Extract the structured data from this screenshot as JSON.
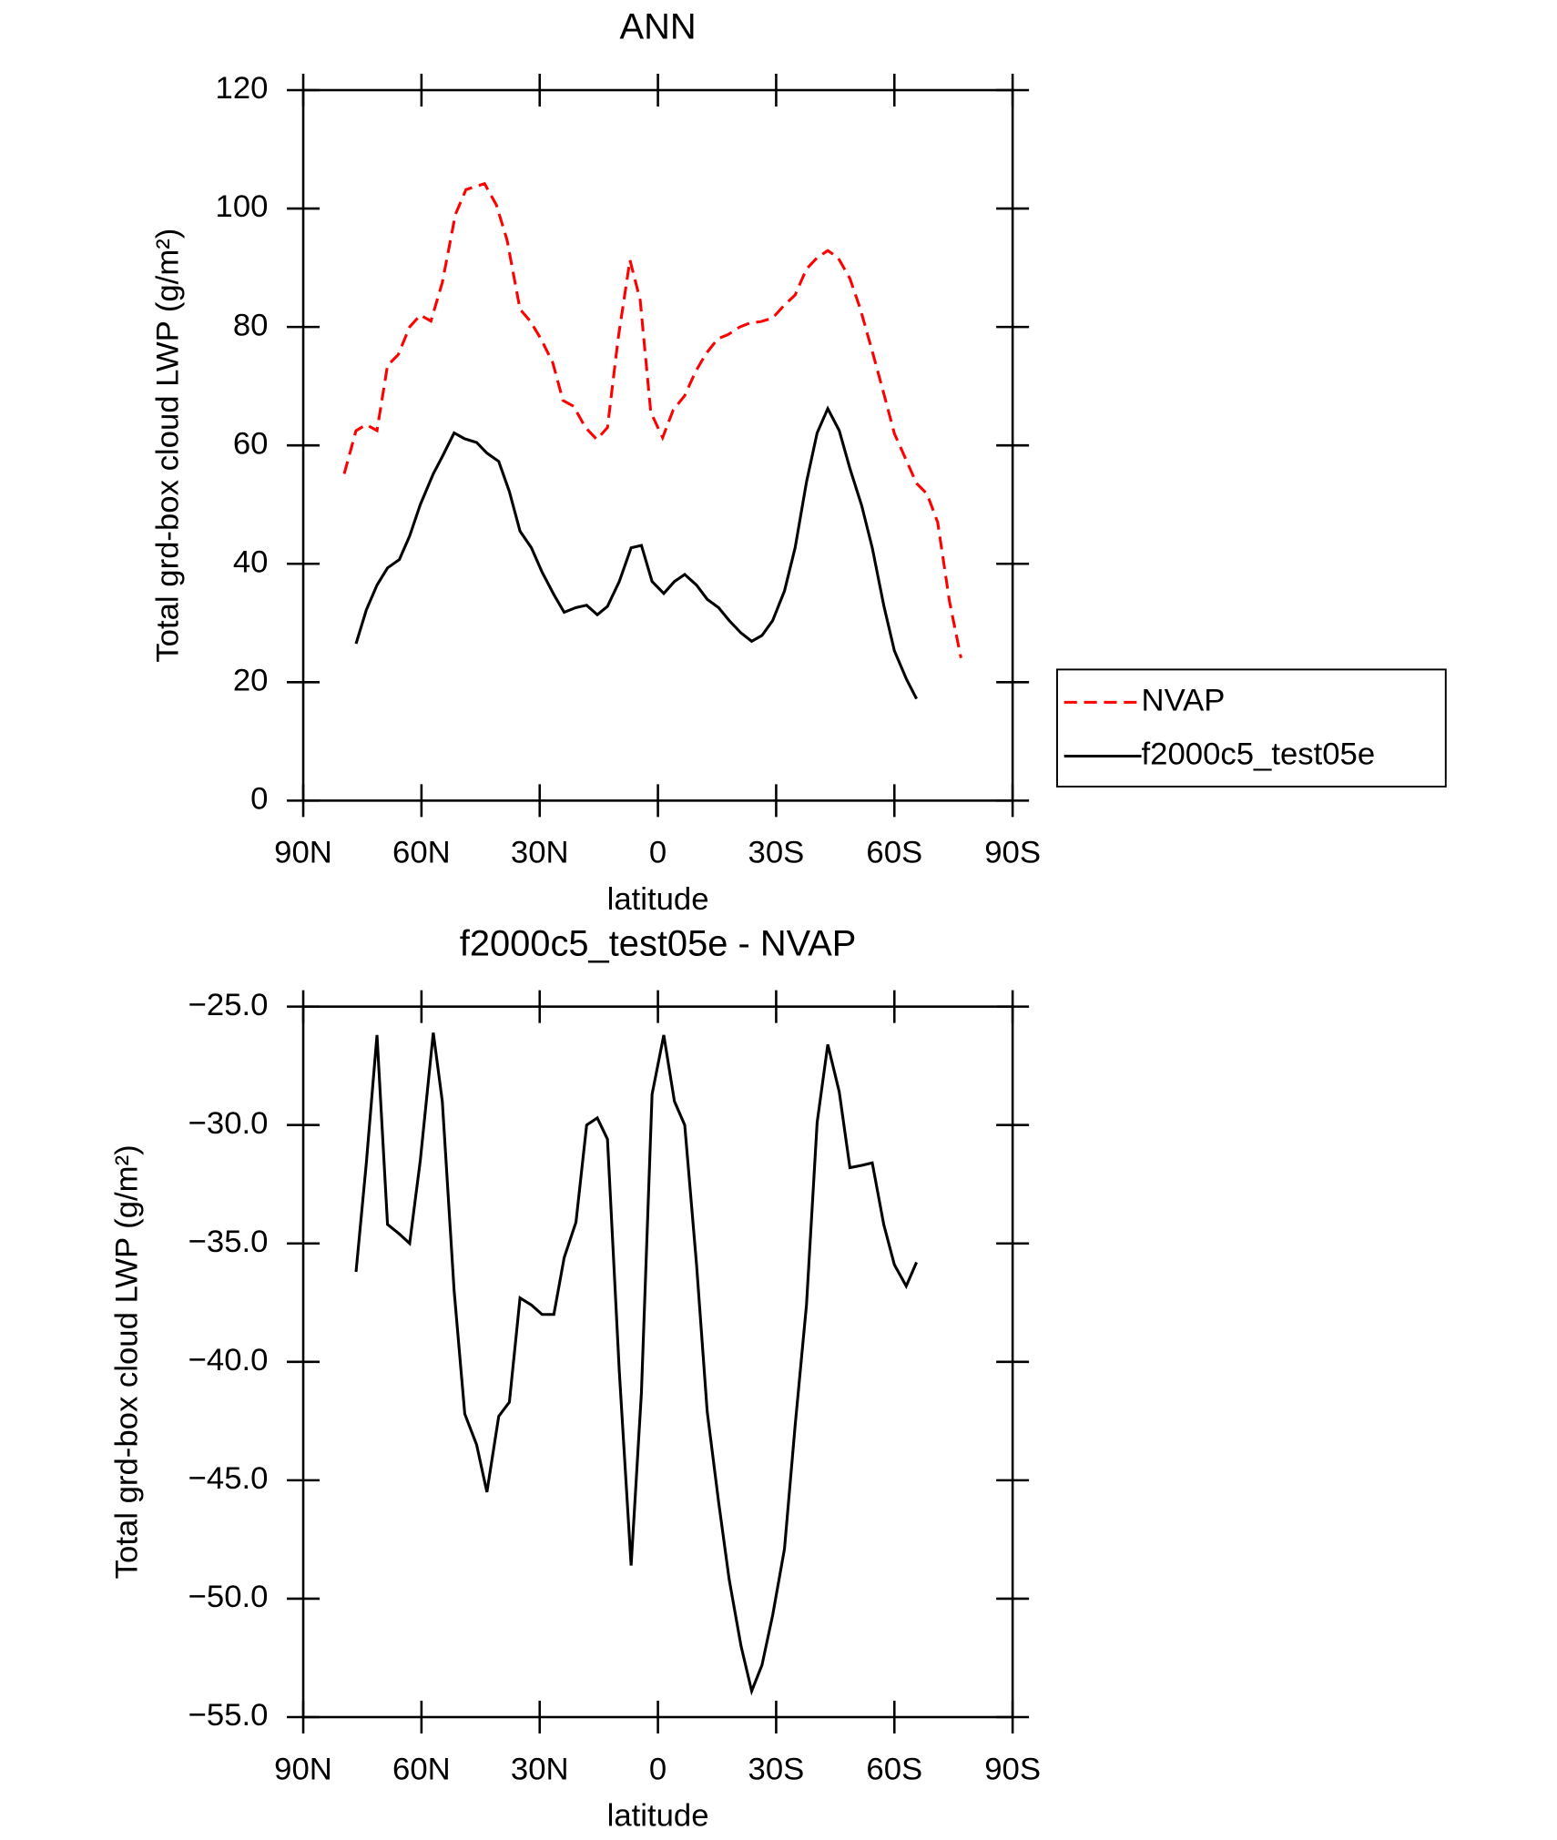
{
  "chart_data": [
    {
      "type": "line",
      "title": "ANN",
      "xlabel": "latitude",
      "ylabel": "Total grd-box cloud LWP (g/m²)",
      "xlim": [
        90,
        -90
      ],
      "xticks": [
        {
          "value": 90,
          "label": "90N"
        },
        {
          "value": 60,
          "label": "60N"
        },
        {
          "value": 30,
          "label": "30N"
        },
        0,
        {
          "value": -30,
          "label": "30S"
        },
        {
          "value": -60,
          "label": "60S"
        },
        {
          "value": -90,
          "label": "90S"
        }
      ],
      "ylim": [
        0,
        120
      ],
      "yticks": [
        0,
        20,
        40,
        60,
        80,
        100,
        120
      ],
      "legend": "right",
      "series": [
        {
          "name": "NVAP",
          "color": "#ff0000",
          "linestyle": "dashed",
          "x": [
            79.6,
            76.6,
            74.0,
            71.3,
            68.6,
            65.9,
            63.0,
            60.3,
            57.6,
            54.7,
            51.4,
            48.7,
            44.0,
            41.0,
            38.3,
            35.0,
            32.4,
            29.7,
            26.7,
            24.1,
            21.4,
            18.4,
            15.5,
            12.8,
            10.1,
            7.1,
            4.5,
            1.8,
            -1.2,
            -3.9,
            -6.8,
            -9.5,
            -12.2,
            -15.2,
            -17.8,
            -20.8,
            -23.5,
            -26.1,
            -29.1,
            -31.8,
            -34.8,
            -37.7,
            -40.4,
            -43.1,
            -45.7,
            -48.7,
            -51.4,
            -54.4,
            -57.3,
            -60.0,
            -63.0,
            -65.6,
            -68.3,
            -71.0,
            -74.0,
            -76.9
          ],
          "values": [
            55.2,
            62.5,
            63.5,
            62.5,
            73.5,
            75.3,
            80,
            82,
            81,
            87.5,
            99,
            103.2,
            104.2,
            100.6,
            94.7,
            83,
            81,
            78,
            74,
            67.6,
            66.6,
            63,
            61,
            63,
            78,
            91.3,
            84.6,
            65.6,
            61.3,
            66,
            68.4,
            72.4,
            75.5,
            78,
            78.7,
            80,
            80.7,
            80.9,
            81.5,
            83.5,
            85.4,
            89.8,
            91.7,
            92.9,
            91.7,
            88.2,
            83,
            75.9,
            68.8,
            62,
            57.5,
            53.6,
            51.8,
            47,
            33.6,
            24.1
          ]
        },
        {
          "name": "f2000c5_test05e",
          "color": "#000000",
          "linestyle": "solid",
          "x": [
            76.6,
            74.0,
            71.3,
            68.6,
            65.6,
            63.0,
            60.3,
            57.0,
            54.7,
            51.7,
            49.0,
            46.0,
            43.4,
            40.4,
            37.7,
            35.0,
            32.1,
            29.4,
            26.4,
            23.8,
            20.8,
            18.1,
            15.4,
            12.8,
            9.8,
            6.8,
            4.2,
            1.5,
            -1.5,
            -4.2,
            -6.8,
            -9.8,
            -12.5,
            -15.4,
            -18.1,
            -21.1,
            -23.8,
            -26.4,
            -29.1,
            -32.1,
            -34.8,
            -37.7,
            -40.4,
            -43.1,
            -46.0,
            -48.7,
            -51.7,
            -54.4,
            -57.3,
            -60.0,
            -63.0,
            -65.6
          ],
          "values": [
            26.5,
            32.2,
            36.4,
            39.3,
            40.7,
            44.7,
            50,
            55.2,
            58.1,
            62.1,
            61.1,
            60.5,
            58.7,
            57.3,
            52.2,
            45.5,
            42.7,
            38.6,
            34.8,
            31.8,
            32.6,
            33,
            31.4,
            32.8,
            37,
            42.7,
            43.1,
            37,
            35,
            37,
            38.2,
            36.4,
            34,
            32.6,
            30.4,
            28.3,
            26.9,
            27.9,
            30.4,
            35.4,
            42.7,
            53.8,
            62.1,
            66.2,
            62.5,
            56.1,
            49.8,
            42.7,
            33,
            25.3,
            20.6,
            17.2
          ]
        }
      ]
    },
    {
      "type": "line",
      "title": "f2000c5_test05e - NVAP",
      "xlabel": "latitude",
      "ylabel": "Total grd-box cloud LWP (g/m²)",
      "xlim": [
        90,
        -90
      ],
      "xticks": [
        {
          "value": 90,
          "label": "90N"
        },
        {
          "value": 60,
          "label": "60N"
        },
        {
          "value": 30,
          "label": "30N"
        },
        0,
        {
          "value": -30,
          "label": "30S"
        },
        {
          "value": -60,
          "label": "60S"
        },
        {
          "value": -90,
          "label": "90S"
        }
      ],
      "ylim": [
        -55,
        -25
      ],
      "yticks": [
        {
          "value": -55,
          "label": "−55.0"
        },
        {
          "value": -50,
          "label": "−50.0"
        },
        {
          "value": -45,
          "label": "−45.0"
        },
        {
          "value": -40,
          "label": "−40.0"
        },
        {
          "value": -35,
          "label": "−35.0"
        },
        {
          "value": -30,
          "label": "−30.0"
        },
        {
          "value": -25,
          "label": "−25.0"
        }
      ],
      "series": [
        {
          "color": "#000000",
          "linestyle": "solid",
          "x": [
            76.6,
            74.0,
            71.3,
            68.6,
            65.6,
            63.0,
            60.3,
            57.0,
            54.7,
            51.7,
            49.0,
            46.0,
            43.4,
            40.4,
            37.7,
            35.0,
            32.1,
            29.4,
            26.4,
            23.8,
            20.8,
            18.1,
            15.4,
            12.8,
            9.8,
            6.8,
            4.2,
            1.5,
            -1.5,
            -4.2,
            -6.8,
            -9.8,
            -12.5,
            -15.4,
            -18.1,
            -21.1,
            -23.8,
            -26.4,
            -29.1,
            -32.1,
            -34.8,
            -37.7,
            -40.4,
            -43.1,
            -46.0,
            -48.7,
            -51.7,
            -54.4,
            -57.3,
            -60.0,
            -63.0,
            -65.6
          ],
          "values": [
            -36.2,
            -31.6,
            -26.2,
            -34.2,
            -34.6,
            -35.0,
            -31.5,
            -26.1,
            -29.0,
            -37.0,
            -42.2,
            -43.5,
            -45.5,
            -42.3,
            -41.7,
            -37.3,
            -37.6,
            -38.0,
            -38.0,
            -35.6,
            -34.1,
            -30.0,
            -29.7,
            -30.6,
            -40.4,
            -48.6,
            -41.3,
            -28.7,
            -26.2,
            -29.0,
            -30.0,
            -35.9,
            -42.1,
            -45.9,
            -49.2,
            -52.0,
            -53.9,
            -52.8,
            -50.7,
            -47.9,
            -42.7,
            -37.6,
            -29.9,
            -26.6,
            -28.6,
            -31.8,
            -31.7,
            -31.6,
            -34.2,
            -35.9,
            -36.8,
            -35.8
          ]
        }
      ]
    }
  ]
}
